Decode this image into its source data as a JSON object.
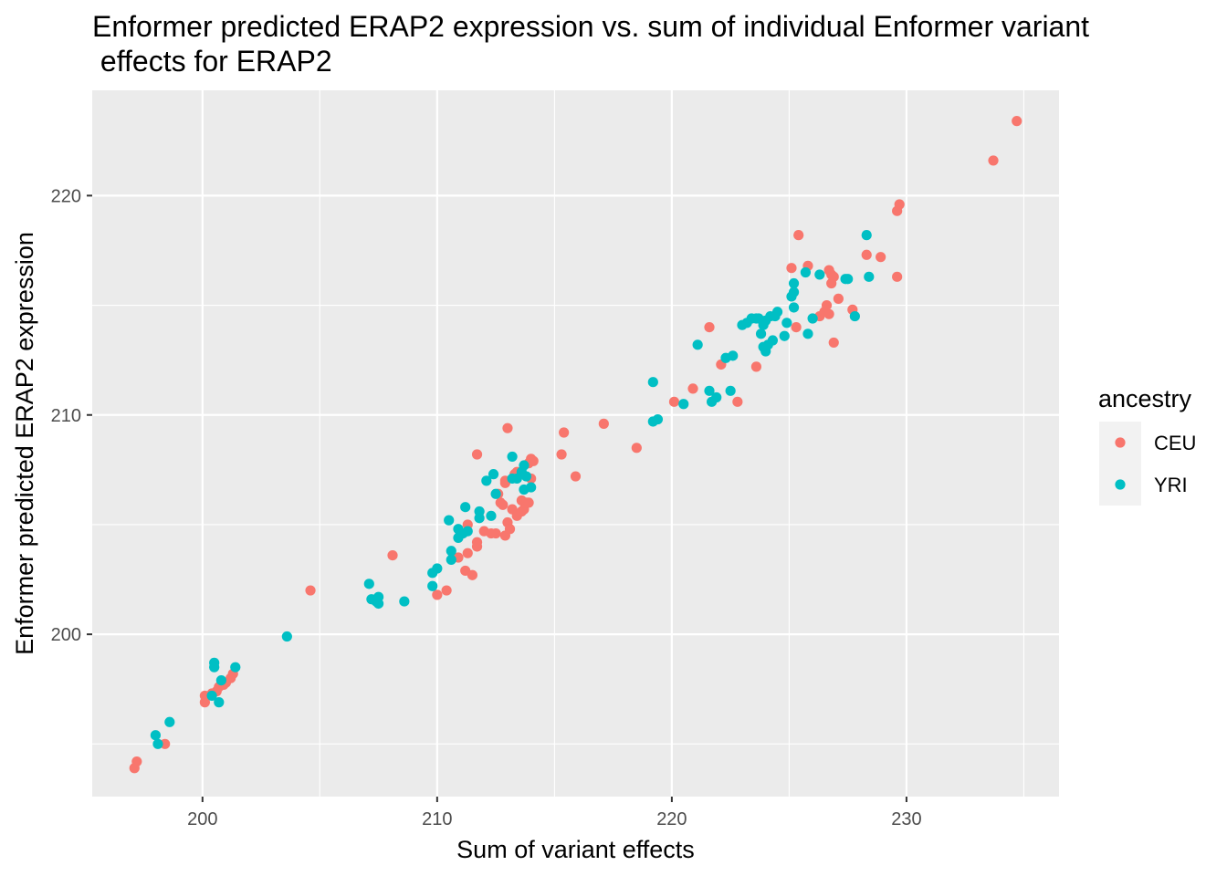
{
  "chart_data": {
    "type": "scatter",
    "title_lines": [
      "Enformer predicted ERAP2 expression vs. sum of individual Enformer variant",
      " effects for ERAP2"
    ],
    "xlabel": "Sum of variant effects",
    "ylabel": "Enformer predicted ERAP2 expression",
    "xlim": [
      195.3,
      236.5
    ],
    "ylim": [
      192.6,
      224.8
    ],
    "x_ticks": [
      200,
      210,
      220,
      230
    ],
    "y_ticks": [
      200,
      210,
      220
    ],
    "grid": true,
    "legend": {
      "title": "ancestry",
      "position": "right"
    },
    "series": [
      {
        "name": "CEU",
        "color": "#F8766D",
        "points": [
          [
            197.1,
            193.9
          ],
          [
            197.2,
            194.2
          ],
          [
            198.4,
            195.0
          ],
          [
            200.1,
            196.9
          ],
          [
            200.1,
            197.2
          ],
          [
            200.4,
            197.3
          ],
          [
            200.6,
            197.4
          ],
          [
            200.7,
            197.6
          ],
          [
            200.9,
            197.7
          ],
          [
            201.0,
            197.8
          ],
          [
            201.2,
            198.0
          ],
          [
            201.3,
            198.2
          ],
          [
            204.6,
            202.0
          ],
          [
            208.1,
            203.6
          ],
          [
            210.0,
            201.8
          ],
          [
            210.4,
            202.0
          ],
          [
            210.9,
            203.5
          ],
          [
            211.2,
            202.9
          ],
          [
            211.3,
            203.7
          ],
          [
            211.3,
            205.0
          ],
          [
            211.5,
            202.7
          ],
          [
            211.7,
            204.0
          ],
          [
            211.7,
            204.2
          ],
          [
            211.7,
            208.2
          ],
          [
            212.0,
            204.7
          ],
          [
            212.3,
            204.6
          ],
          [
            212.5,
            204.6
          ],
          [
            212.6,
            206.4
          ],
          [
            212.7,
            206.0
          ],
          [
            212.8,
            205.9
          ],
          [
            212.9,
            204.5
          ],
          [
            212.9,
            206.9
          ],
          [
            212.9,
            207.0
          ],
          [
            213.0,
            205.1
          ],
          [
            213.0,
            209.4
          ],
          [
            213.1,
            204.8
          ],
          [
            213.2,
            205.7
          ],
          [
            213.3,
            207.3
          ],
          [
            213.4,
            205.4
          ],
          [
            213.4,
            207.4
          ],
          [
            213.6,
            205.6
          ],
          [
            213.6,
            206.1
          ],
          [
            213.7,
            205.7
          ],
          [
            213.8,
            206.0
          ],
          [
            213.9,
            206.0
          ],
          [
            213.9,
            207.8
          ],
          [
            214.0,
            207.1
          ],
          [
            214.0,
            208.0
          ],
          [
            214.1,
            207.9
          ],
          [
            215.3,
            208.2
          ],
          [
            215.4,
            209.2
          ],
          [
            215.9,
            207.2
          ],
          [
            217.1,
            209.6
          ],
          [
            218.5,
            208.5
          ],
          [
            220.1,
            210.6
          ],
          [
            220.9,
            211.2
          ],
          [
            221.6,
            214.0
          ],
          [
            222.1,
            212.3
          ],
          [
            222.8,
            210.6
          ],
          [
            223.6,
            212.2
          ],
          [
            225.1,
            216.7
          ],
          [
            225.3,
            214.0
          ],
          [
            225.4,
            218.2
          ],
          [
            225.8,
            216.8
          ],
          [
            226.3,
            214.5
          ],
          [
            226.5,
            214.7
          ],
          [
            226.6,
            215.0
          ],
          [
            226.7,
            214.6
          ],
          [
            226.7,
            216.6
          ],
          [
            226.8,
            216.0
          ],
          [
            226.8,
            216.4
          ],
          [
            226.9,
            216.3
          ],
          [
            226.9,
            213.3
          ],
          [
            227.1,
            215.3
          ],
          [
            227.7,
            214.8
          ],
          [
            228.3,
            217.3
          ],
          [
            228.9,
            217.2
          ],
          [
            229.6,
            216.3
          ],
          [
            229.6,
            219.3
          ],
          [
            229.7,
            219.6
          ],
          [
            233.7,
            221.6
          ],
          [
            234.7,
            223.4
          ]
        ]
      },
      {
        "name": "YRI",
        "color": "#00BFC4",
        "points": [
          [
            198.0,
            195.4
          ],
          [
            198.1,
            195.0
          ],
          [
            198.6,
            196.0
          ],
          [
            200.4,
            197.2
          ],
          [
            200.5,
            198.5
          ],
          [
            200.5,
            198.7
          ],
          [
            200.7,
            196.9
          ],
          [
            200.8,
            197.9
          ],
          [
            201.4,
            198.5
          ],
          [
            203.6,
            199.9
          ],
          [
            207.1,
            202.3
          ],
          [
            207.2,
            201.6
          ],
          [
            207.4,
            201.5
          ],
          [
            207.5,
            201.4
          ],
          [
            207.5,
            201.7
          ],
          [
            208.6,
            201.5
          ],
          [
            209.8,
            202.2
          ],
          [
            209.8,
            202.8
          ],
          [
            210.0,
            203.0
          ],
          [
            210.5,
            205.2
          ],
          [
            210.6,
            203.4
          ],
          [
            210.6,
            203.8
          ],
          [
            210.9,
            204.4
          ],
          [
            210.9,
            204.8
          ],
          [
            211.1,
            204.6
          ],
          [
            211.2,
            205.8
          ],
          [
            211.3,
            204.7
          ],
          [
            211.8,
            205.3
          ],
          [
            211.8,
            205.6
          ],
          [
            212.1,
            207.0
          ],
          [
            212.3,
            205.4
          ],
          [
            212.4,
            207.3
          ],
          [
            212.5,
            206.4
          ],
          [
            213.2,
            207.1
          ],
          [
            213.2,
            208.1
          ],
          [
            213.4,
            207.1
          ],
          [
            213.6,
            207.4
          ],
          [
            213.7,
            206.6
          ],
          [
            213.7,
            207.7
          ],
          [
            213.8,
            207.2
          ],
          [
            214.0,
            206.7
          ],
          [
            219.2,
            209.7
          ],
          [
            219.2,
            211.5
          ],
          [
            219.4,
            209.8
          ],
          [
            220.5,
            210.5
          ],
          [
            221.1,
            213.2
          ],
          [
            221.6,
            211.1
          ],
          [
            221.7,
            210.6
          ],
          [
            221.9,
            210.8
          ],
          [
            222.3,
            212.6
          ],
          [
            222.5,
            211.1
          ],
          [
            222.6,
            212.7
          ],
          [
            223.0,
            214.1
          ],
          [
            223.2,
            214.2
          ],
          [
            223.4,
            214.4
          ],
          [
            223.6,
            214.4
          ],
          [
            223.7,
            214.4
          ],
          [
            223.8,
            213.7
          ],
          [
            223.9,
            213.1
          ],
          [
            223.9,
            214.1
          ],
          [
            224.0,
            212.9
          ],
          [
            224.0,
            214.3
          ],
          [
            224.1,
            213.2
          ],
          [
            224.2,
            214.5
          ],
          [
            224.3,
            213.4
          ],
          [
            224.4,
            214.5
          ],
          [
            224.5,
            214.7
          ],
          [
            224.8,
            213.6
          ],
          [
            224.9,
            214.2
          ],
          [
            225.1,
            215.4
          ],
          [
            225.2,
            215.6
          ],
          [
            225.2,
            216.0
          ],
          [
            225.2,
            214.9
          ],
          [
            225.7,
            216.5
          ],
          [
            225.8,
            213.7
          ],
          [
            226.0,
            214.4
          ],
          [
            226.3,
            216.4
          ],
          [
            227.4,
            216.2
          ],
          [
            227.5,
            216.2
          ],
          [
            227.8,
            214.5
          ],
          [
            228.3,
            218.2
          ],
          [
            228.4,
            216.3
          ]
        ]
      }
    ]
  }
}
